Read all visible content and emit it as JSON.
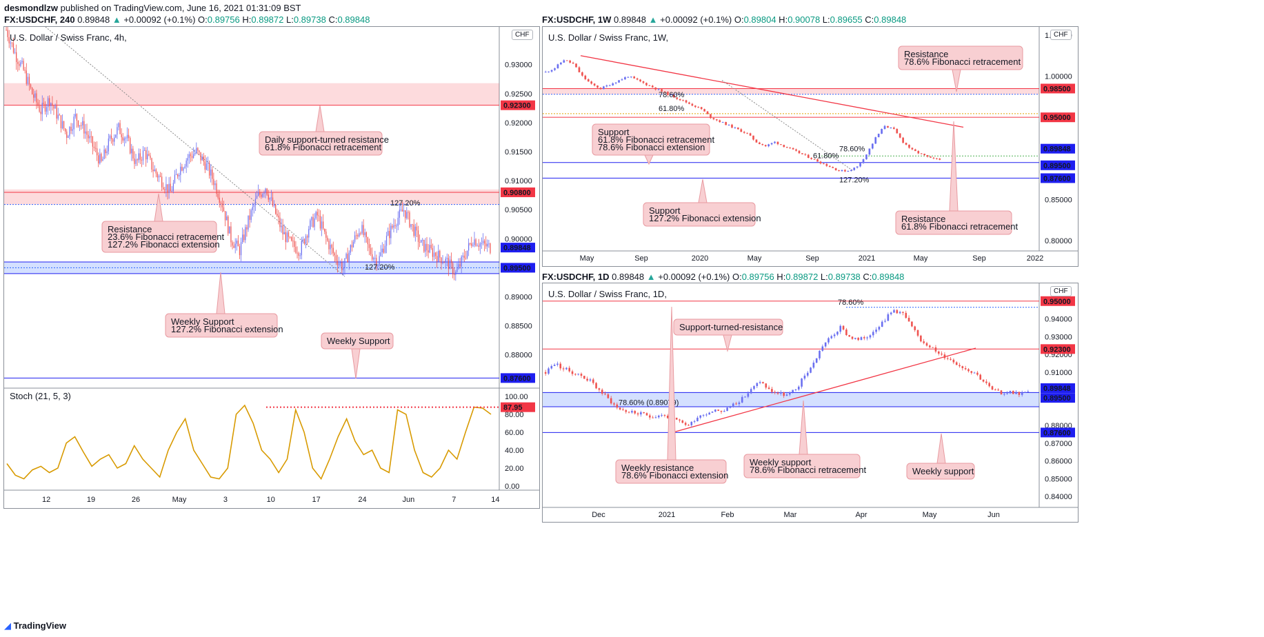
{
  "header": {
    "author": "desmondlzw",
    "published": "published on TradingView.com, June 16, 2021 01:31:09 BST"
  },
  "brand": "TradingView",
  "colors": {
    "bull": "#6a6ff0",
    "bear": "#ef5350",
    "res_line": "#f23645",
    "sup_line": "#1e1ef0",
    "res_zone": "rgba(242,54,69,0.18)",
    "sup_zone": "rgba(41,98,255,0.20)",
    "stoch": "#d89a00"
  },
  "panels": {
    "h4": {
      "symbol_line": {
        "symbol": "FX:USDCHF, 240",
        "last": "0.89848",
        "change": "+0.00092 (+0.1%)",
        "o": "0.89756",
        "h": "0.89872",
        "l": "0.89738",
        "c": "0.89848"
      },
      "title": "U.S. Dollar / Swiss Franc, 4h,",
      "currency": "CHF",
      "x_ticks": [
        "12",
        "19",
        "26",
        "May",
        "3",
        "10",
        "17",
        "24",
        "Jun",
        "7",
        "14"
      ],
      "y_ticks": [
        "0.93000",
        "0.92500",
        "0.92000",
        "0.91500",
        "0.91000",
        "0.90500",
        "0.90000",
        "0.89500",
        "0.89000",
        "0.88500",
        "0.88000"
      ],
      "price_tags": [
        {
          "text": "0.92300",
          "kind": "res"
        },
        {
          "text": "0.90800",
          "kind": "res"
        },
        {
          "text": "0.89848",
          "kind": "sup"
        },
        {
          "text": "0.89500",
          "kind": "sup"
        },
        {
          "text": "0.87600",
          "kind": "sup"
        }
      ],
      "fib_labels": [
        "127.20%",
        "127.20%"
      ],
      "annotations": [
        {
          "lines": [
            "Daily support-turned resistance",
            "61.8% Fibonacci retracement"
          ]
        },
        {
          "lines": [
            "Resistance",
            "23.6% Fibonacci retracement",
            "127.2% Fibonacci extension"
          ]
        },
        {
          "lines": [
            "Weekly Support",
            "127.2% Fibonacci extension"
          ]
        },
        {
          "lines": [
            "Weekly Support"
          ]
        }
      ],
      "stoch": {
        "title": "Stoch (21, 5, 3)",
        "y_ticks": [
          "100.00",
          "80.00",
          "60.00",
          "40.00",
          "20.00",
          "0.00"
        ],
        "last": "87.95"
      }
    },
    "w1": {
      "symbol_line": {
        "symbol": "FX:USDCHF, 1W",
        "last": "0.89848",
        "change": "+0.00092 (+0.1%)",
        "o": "0.89804",
        "h": "0.90078",
        "l": "0.89655",
        "c": "0.89848"
      },
      "title": "U.S. Dollar / Swiss Franc, 1W,",
      "currency": "CHF",
      "x_ticks": [
        "May",
        "Sep",
        "2020",
        "May",
        "Sep",
        "2021",
        "May",
        "Sep",
        "2022"
      ],
      "y_ticks": [
        "1.05000",
        "1.00000",
        "0.95000",
        "0.90000",
        "0.85000",
        "0.80000"
      ],
      "price_tags": [
        {
          "text": "0.98500",
          "kind": "res"
        },
        {
          "text": "0.95000",
          "kind": "res"
        },
        {
          "text": "0.89848",
          "kind": "sup"
        },
        {
          "text": "0.89500",
          "kind": "sup"
        },
        {
          "text": "0.87600",
          "kind": "sup"
        }
      ],
      "fib_labels": [
        "78.60%",
        "61.80%",
        "61.80%",
        "78.60%",
        "127.20%"
      ],
      "annotations": [
        {
          "lines": [
            "Resistance",
            "78.6% Fibonacci retracement"
          ]
        },
        {
          "lines": [
            "Support",
            "61.8% Fibonacci retracement",
            "78.6% Fibonacci extension"
          ]
        },
        {
          "lines": [
            "Support",
            "127.2% Fibonacci extension"
          ]
        },
        {
          "lines": [
            "Resistance",
            "61.8% Fibonacci retracement"
          ]
        }
      ]
    },
    "d1": {
      "symbol_line": {
        "symbol": "FX:USDCHF, 1D",
        "last": "0.89848",
        "change": "+0.00092 (+0.1%)",
        "o": "0.89756",
        "h": "0.89872",
        "l": "0.89738",
        "c": "0.89848"
      },
      "title": "U.S. Dollar / Swiss Franc, 1D,",
      "currency": "CHF",
      "x_ticks": [
        "Dec",
        "2021",
        "Feb",
        "Mar",
        "Apr",
        "May",
        "Jun"
      ],
      "y_ticks": [
        "0.94000",
        "0.93000",
        "0.92000",
        "0.91000",
        "0.88000",
        "0.87000",
        "0.86000",
        "0.85000",
        "0.84000"
      ],
      "price_tags": [
        {
          "text": "0.95000",
          "kind": "res"
        },
        {
          "text": "0.92300",
          "kind": "res"
        },
        {
          "text": "0.89848",
          "kind": "sup"
        },
        {
          "text": "0.89500",
          "kind": "sup"
        },
        {
          "text": "0.87600",
          "kind": "sup"
        }
      ],
      "fib_labels": [
        "78.60%",
        "78.60% (0.89079)"
      ],
      "annotations": [
        {
          "lines": [
            "Support-turned-resistance"
          ]
        },
        {
          "lines": [
            "Weekly resistance",
            "78.6% Fibonacci extension"
          ]
        },
        {
          "lines": [
            "Weekly support",
            "78.6% Fibonacci retracement"
          ]
        },
        {
          "lines": [
            "Weekly support"
          ]
        }
      ]
    }
  },
  "chart_data": [
    {
      "type": "candlestick",
      "title": "U.S. Dollar / Swiss Franc, 4h,",
      "ylim": [
        0.8745,
        0.9365
      ],
      "close_path": [
        0.936,
        0.932,
        0.929,
        0.925,
        0.922,
        0.924,
        0.921,
        0.918,
        0.921,
        0.919,
        0.916,
        0.913,
        0.917,
        0.919,
        0.917,
        0.913,
        0.915,
        0.912,
        0.91,
        0.908,
        0.912,
        0.914,
        0.915,
        0.913,
        0.91,
        0.906,
        0.9,
        0.898,
        0.903,
        0.907,
        0.909,
        0.905,
        0.901,
        0.899,
        0.898,
        0.902,
        0.904,
        0.9,
        0.897,
        0.895,
        0.899,
        0.902,
        0.898,
        0.896,
        0.9,
        0.903,
        0.905,
        0.902,
        0.899,
        0.898,
        0.897,
        0.896,
        0.894,
        0.897,
        0.9,
        0.899,
        0.8985
      ],
      "levels": {
        "resistance_zone": [
          0.923,
          0.9268
        ],
        "resistance": 0.908,
        "support_zone": [
          0.894,
          0.896
        ],
        "support": 0.895,
        "weekly_support": 0.876
      },
      "stoch_last": 87.95
    },
    {
      "type": "candlestick",
      "title": "U.S. Dollar / Swiss Franc, 1W,",
      "ylim": [
        0.79,
        1.06
      ],
      "close_path": [
        1.005,
        1.01,
        1.02,
        1.015,
        1.0,
        0.99,
        0.985,
        0.99,
        0.995,
        1.0,
        0.995,
        0.99,
        0.985,
        0.98,
        0.975,
        0.97,
        0.965,
        0.96,
        0.95,
        0.945,
        0.94,
        0.935,
        0.93,
        0.92,
        0.915,
        0.92,
        0.915,
        0.91,
        0.905,
        0.9,
        0.895,
        0.89,
        0.885,
        0.885,
        0.89,
        0.905,
        0.925,
        0.94,
        0.935,
        0.92,
        0.91,
        0.905,
        0.9,
        0.8985
      ],
      "levels": {
        "resistance_zone": [
          0.978,
          0.985
        ],
        "resistance": 0.95,
        "support": 0.895,
        "lower_support": 0.876
      }
    },
    {
      "type": "candlestick",
      "title": "U.S. Dollar / Swiss Franc, 1D,",
      "ylim": [
        0.835,
        0.96
      ],
      "close_path": [
        0.91,
        0.915,
        0.912,
        0.91,
        0.908,
        0.905,
        0.9,
        0.895,
        0.89,
        0.888,
        0.887,
        0.886,
        0.885,
        0.886,
        0.884,
        0.882,
        0.88,
        0.885,
        0.887,
        0.889,
        0.888,
        0.892,
        0.895,
        0.9,
        0.905,
        0.9,
        0.898,
        0.897,
        0.9,
        0.908,
        0.915,
        0.925,
        0.93,
        0.935,
        0.93,
        0.928,
        0.93,
        0.935,
        0.94,
        0.945,
        0.943,
        0.935,
        0.928,
        0.925,
        0.92,
        0.918,
        0.915,
        0.912,
        0.91,
        0.905,
        0.9,
        0.898,
        0.899,
        0.898,
        0.8985
      ],
      "levels": {
        "resistance_top": 0.95,
        "resistance": 0.923,
        "support_zone": [
          0.895,
          0.8985
        ],
        "support": 0.876
      }
    }
  ]
}
